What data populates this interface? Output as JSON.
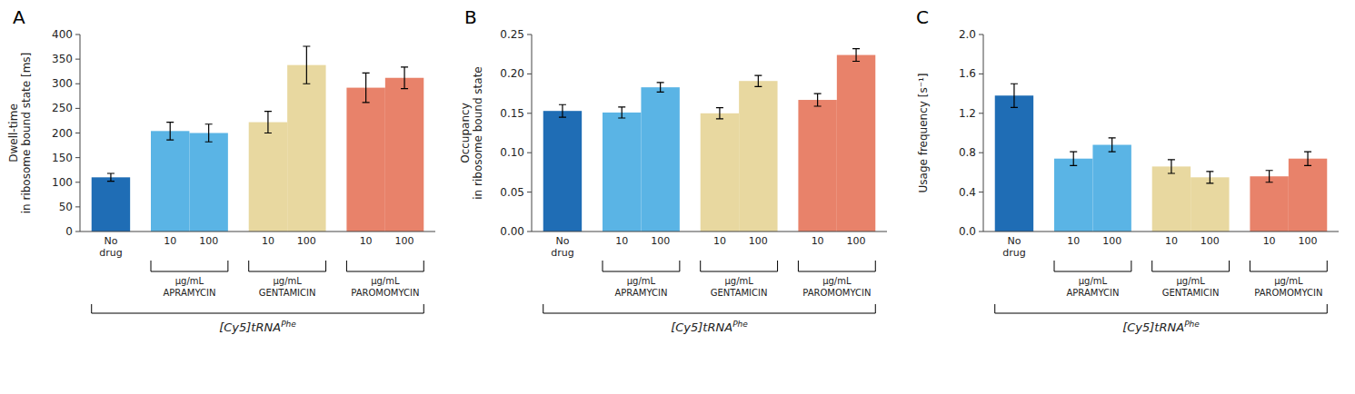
{
  "chart_data": [
    {
      "type": "bar",
      "title": "A",
      "ylabel": "Dwell-time\nin ribosome bound state [ms]",
      "categories": [
        "No\ndrug",
        "10",
        "100",
        "10",
        "100",
        "10",
        "100"
      ],
      "values": [
        110,
        204,
        200,
        222,
        338,
        292,
        312
      ],
      "errors": [
        8,
        18,
        18,
        22,
        38,
        30,
        22
      ],
      "colors": [
        "#1f6db5",
        "#5ab4e5",
        "#5ab4e5",
        "#e8d8a0",
        "#e8d8a0",
        "#e8826a",
        "#e8826a"
      ],
      "ylim": [
        0,
        400
      ],
      "yticks": [
        0,
        50,
        100,
        150,
        200,
        250,
        300,
        350,
        400
      ],
      "group_labels": [
        "APRAMYCIN",
        "GENTAMICIN",
        "PAROMOMYCIN"
      ],
      "group_unit": "μg/mL",
      "xlabel": "[Cy5]tRNA",
      "xlabel_superscript": "Phe",
      "grid": false
    },
    {
      "type": "bar",
      "title": "B",
      "ylabel": "Occupancy\nin ribosome bound state",
      "categories": [
        "No\ndrug",
        "10",
        "100",
        "10",
        "100",
        "10",
        "100"
      ],
      "values": [
        0.153,
        0.151,
        0.183,
        0.15,
        0.191,
        0.167,
        0.224
      ],
      "errors": [
        0.008,
        0.007,
        0.006,
        0.007,
        0.007,
        0.008,
        0.008
      ],
      "colors": [
        "#1f6db5",
        "#5ab4e5",
        "#5ab4e5",
        "#e8d8a0",
        "#e8d8a0",
        "#e8826a",
        "#e8826a"
      ],
      "ylim": [
        0,
        0.25
      ],
      "yticks": [
        {
          "value": 0,
          "label": "0.00"
        },
        0.05,
        {
          "value": 0.1,
          "label": "0.10"
        },
        0.15,
        {
          "value": 0.2,
          "label": "0.20"
        },
        0.25
      ],
      "group_labels": [
        "APRAMYCIN",
        "GENTAMICIN",
        "PAROMOMYCIN"
      ],
      "group_unit": "μg/mL",
      "xlabel": "[Cy5]tRNA",
      "xlabel_superscript": "Phe",
      "grid": false
    },
    {
      "type": "bar",
      "title": "C",
      "ylabel": "Usage frequency [s⁻¹]",
      "categories": [
        "No\ndrug",
        "10",
        "100",
        "10",
        "100",
        "10",
        "100"
      ],
      "values": [
        1.38,
        0.74,
        0.88,
        0.66,
        0.55,
        0.56,
        0.74
      ],
      "errors": [
        0.12,
        0.07,
        0.07,
        0.07,
        0.06,
        0.06,
        0.07
      ],
      "colors": [
        "#1f6db5",
        "#5ab4e5",
        "#5ab4e5",
        "#e8d8a0",
        "#e8d8a0",
        "#e8826a",
        "#e8826a"
      ],
      "ylim": [
        0,
        2.0
      ],
      "yticks": [
        {
          "value": 0,
          "label": "0.0"
        },
        0.4,
        0.8,
        1.2,
        1.6,
        {
          "value": 2.0,
          "label": "2.0"
        }
      ],
      "group_labels": [
        "APRAMYCIN",
        "GENTAMICIN",
        "PAROMOMYCIN"
      ],
      "group_unit": "μg/mL",
      "xlabel": "[Cy5]tRNA",
      "xlabel_superscript": "Phe",
      "grid": false
    }
  ]
}
